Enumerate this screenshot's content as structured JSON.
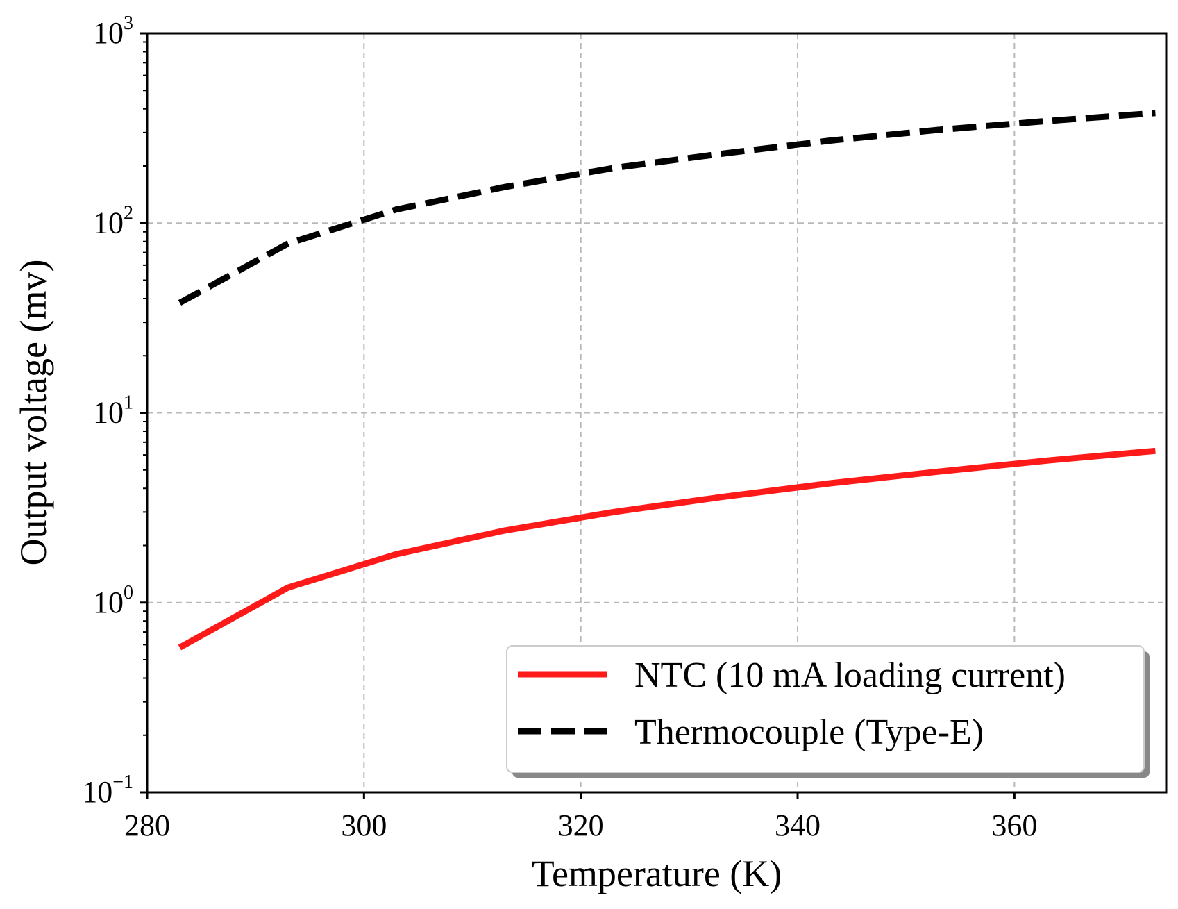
{
  "chart_data": {
    "type": "line",
    "title": "",
    "xlabel": "Temperature (K)",
    "ylabel": "Output voltage (mv)",
    "xscale": "linear",
    "yscale": "log",
    "xlim": [
      280,
      374
    ],
    "ylim": [
      0.1,
      1000
    ],
    "grid": true,
    "legend_position": "lower-right",
    "x_ticks": [
      280,
      300,
      320,
      340,
      360
    ],
    "x_tick_labels": [
      "280",
      "300",
      "320",
      "340",
      "360"
    ],
    "y_ticks": [
      {
        "value": 0.1,
        "base": "10",
        "exp": "−1"
      },
      {
        "value": 1,
        "base": "10",
        "exp": "0"
      },
      {
        "value": 10,
        "base": "10",
        "exp": "1"
      },
      {
        "value": 100,
        "base": "10",
        "exp": "2"
      },
      {
        "value": 1000,
        "base": "10",
        "exp": "3"
      }
    ],
    "series": [
      {
        "name": "NTC (10 mA loading current)",
        "color": "#ff1a1a",
        "style": "solid",
        "x": [
          283,
          293,
          303,
          313,
          323,
          333,
          343,
          353,
          363,
          373
        ],
        "y": [
          0.58,
          1.2,
          1.8,
          2.4,
          3.0,
          3.6,
          4.25,
          4.9,
          5.6,
          6.3
        ]
      },
      {
        "name": "Thermocouple (Type-E)",
        "color": "#000000",
        "style": "dashed",
        "x": [
          283,
          293,
          303,
          313,
          323,
          333,
          343,
          353,
          363,
          373
        ],
        "y": [
          38,
          78,
          118,
          155,
          195,
          232,
          272,
          310,
          345,
          380
        ]
      }
    ]
  }
}
